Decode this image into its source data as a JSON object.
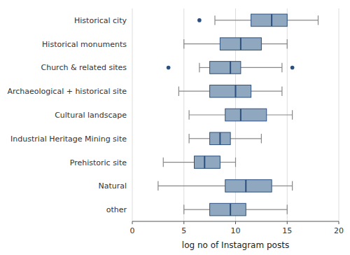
{
  "chart_data": {
    "type": "box",
    "orientation": "horizontal",
    "categories": [
      "Historical city",
      "Historical monuments",
      "Church & related sites",
      "Archaeological + historical site",
      "Cultural landscape",
      "Industrial Heritage Mining site",
      "Prehistoric site",
      "Natural",
      "other"
    ],
    "boxes": [
      {
        "whislo": 8.0,
        "q1": 11.5,
        "med": 13.5,
        "q3": 15.0,
        "whishi": 18.0,
        "fliers": [
          6.5
        ]
      },
      {
        "whislo": 5.0,
        "q1": 8.5,
        "med": 10.5,
        "q3": 12.5,
        "whishi": 15.0,
        "fliers": []
      },
      {
        "whislo": 6.5,
        "q1": 7.5,
        "med": 9.5,
        "q3": 10.5,
        "whishi": 14.5,
        "fliers": [
          3.5,
          15.5
        ]
      },
      {
        "whislo": 4.5,
        "q1": 7.5,
        "med": 10.0,
        "q3": 11.5,
        "whishi": 14.5,
        "fliers": []
      },
      {
        "whislo": 5.5,
        "q1": 9.0,
        "med": 10.5,
        "q3": 13.0,
        "whishi": 15.5,
        "fliers": []
      },
      {
        "whislo": 5.5,
        "q1": 7.5,
        "med": 8.5,
        "q3": 9.5,
        "whishi": 12.5,
        "fliers": []
      },
      {
        "whislo": 3.0,
        "q1": 6.0,
        "med": 7.0,
        "q3": 8.5,
        "whishi": 10.0,
        "fliers": []
      },
      {
        "whislo": 2.5,
        "q1": 9.0,
        "med": 11.0,
        "q3": 13.5,
        "whishi": 15.5,
        "fliers": []
      },
      {
        "whislo": 5.0,
        "q1": 7.5,
        "med": 9.5,
        "q3": 11.0,
        "whishi": 15.0,
        "fliers": []
      }
    ],
    "color": "#8fa8bf",
    "xlabel": "log no of Instagram posts",
    "xlim": [
      0,
      20
    ],
    "xticks": [
      0,
      5,
      10,
      15,
      20
    ],
    "grid": true
  }
}
